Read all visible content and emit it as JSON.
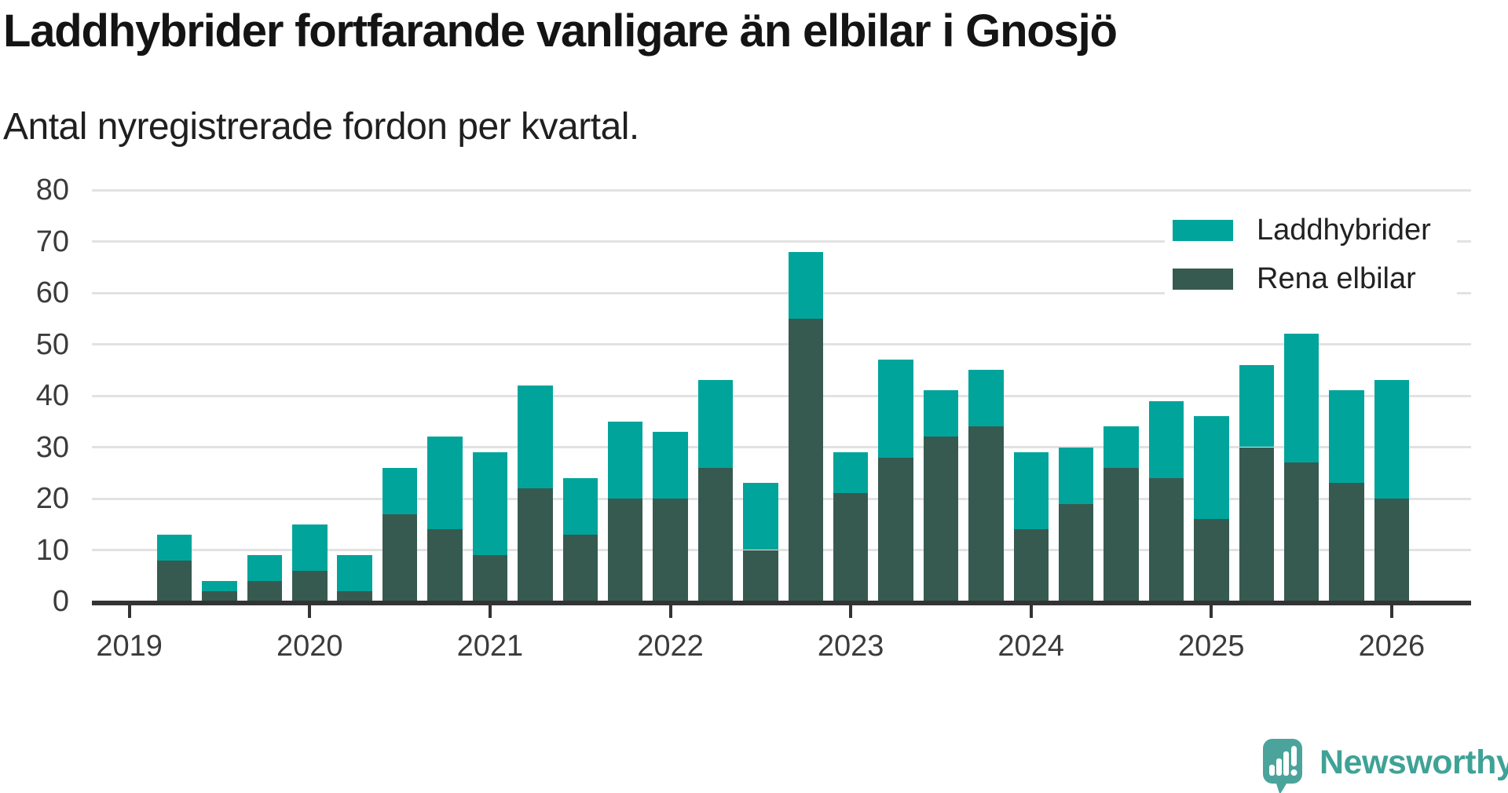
{
  "header": {
    "title": "Laddhybrider fortfarande vanligare än elbilar i Gnosjö",
    "subtitle": "Antal nyregistrerade fordon per kvartal."
  },
  "chart_data": {
    "type": "bar",
    "stacked": true,
    "title": "Laddhybrider fortfarande vanligare än elbilar i Gnosjö",
    "subtitle": "Antal nyregistrerade fordon per kvartal.",
    "categories": [
      "2019Q2",
      "2019Q3",
      "2019Q4",
      "2020Q1",
      "2020Q2",
      "2020Q3",
      "2020Q4",
      "2021Q1",
      "2021Q2",
      "2021Q3",
      "2021Q4",
      "2022Q1",
      "2022Q2",
      "2022Q3",
      "2022Q4",
      "2023Q1",
      "2023Q2",
      "2023Q3",
      "2023Q4",
      "2024Q1",
      "2024Q2",
      "2024Q3",
      "2024Q4",
      "2025Q1",
      "2025Q2",
      "2025Q3",
      "2025Q4",
      "2026Q1"
    ],
    "series": [
      {
        "name": "Laddhybrider",
        "color": "#00a49b",
        "values": [
          5,
          2,
          5,
          9,
          7,
          9,
          18,
          20,
          20,
          11,
          15,
          13,
          17,
          13,
          13,
          8,
          19,
          9,
          11,
          15,
          11,
          8,
          15,
          20,
          16,
          25,
          18,
          23
        ]
      },
      {
        "name": "Rena elbilar",
        "color": "#375a50",
        "values": [
          8,
          2,
          4,
          6,
          2,
          17,
          14,
          9,
          22,
          13,
          20,
          20,
          26,
          10,
          55,
          21,
          28,
          32,
          34,
          14,
          19,
          26,
          24,
          16,
          30,
          27,
          23,
          20
        ]
      }
    ],
    "stack_order_bottom_to_top": [
      "Rena elbilar",
      "Laddhybrider"
    ],
    "totals": [
      13,
      4,
      9,
      15,
      9,
      26,
      32,
      29,
      42,
      24,
      35,
      33,
      43,
      23,
      68,
      29,
      47,
      41,
      45,
      29,
      30,
      34,
      39,
      36,
      46,
      52,
      41,
      43
    ],
    "ylim": [
      0,
      80
    ],
    "yticks": [
      0,
      10,
      20,
      30,
      40,
      50,
      60,
      70,
      80
    ],
    "xticks": [
      "2019",
      "2020",
      "2021",
      "2022",
      "2023",
      "2024",
      "2025",
      "2026"
    ],
    "grid": "horizontal",
    "legend_position": "top-right",
    "axis_color": "#333333",
    "gridline_color": "#e2e2e2"
  },
  "legend": {
    "items": [
      {
        "label": "Laddhybrider",
        "color": "#00a49b"
      },
      {
        "label": "Rena elbilar",
        "color": "#375a50"
      }
    ]
  },
  "branding": {
    "logo_text": "Newsworthy",
    "logo_icon": "speech-bubble-bar-chart-icon",
    "color": "#3fa296",
    "bubble_color": "#4aa49b"
  }
}
